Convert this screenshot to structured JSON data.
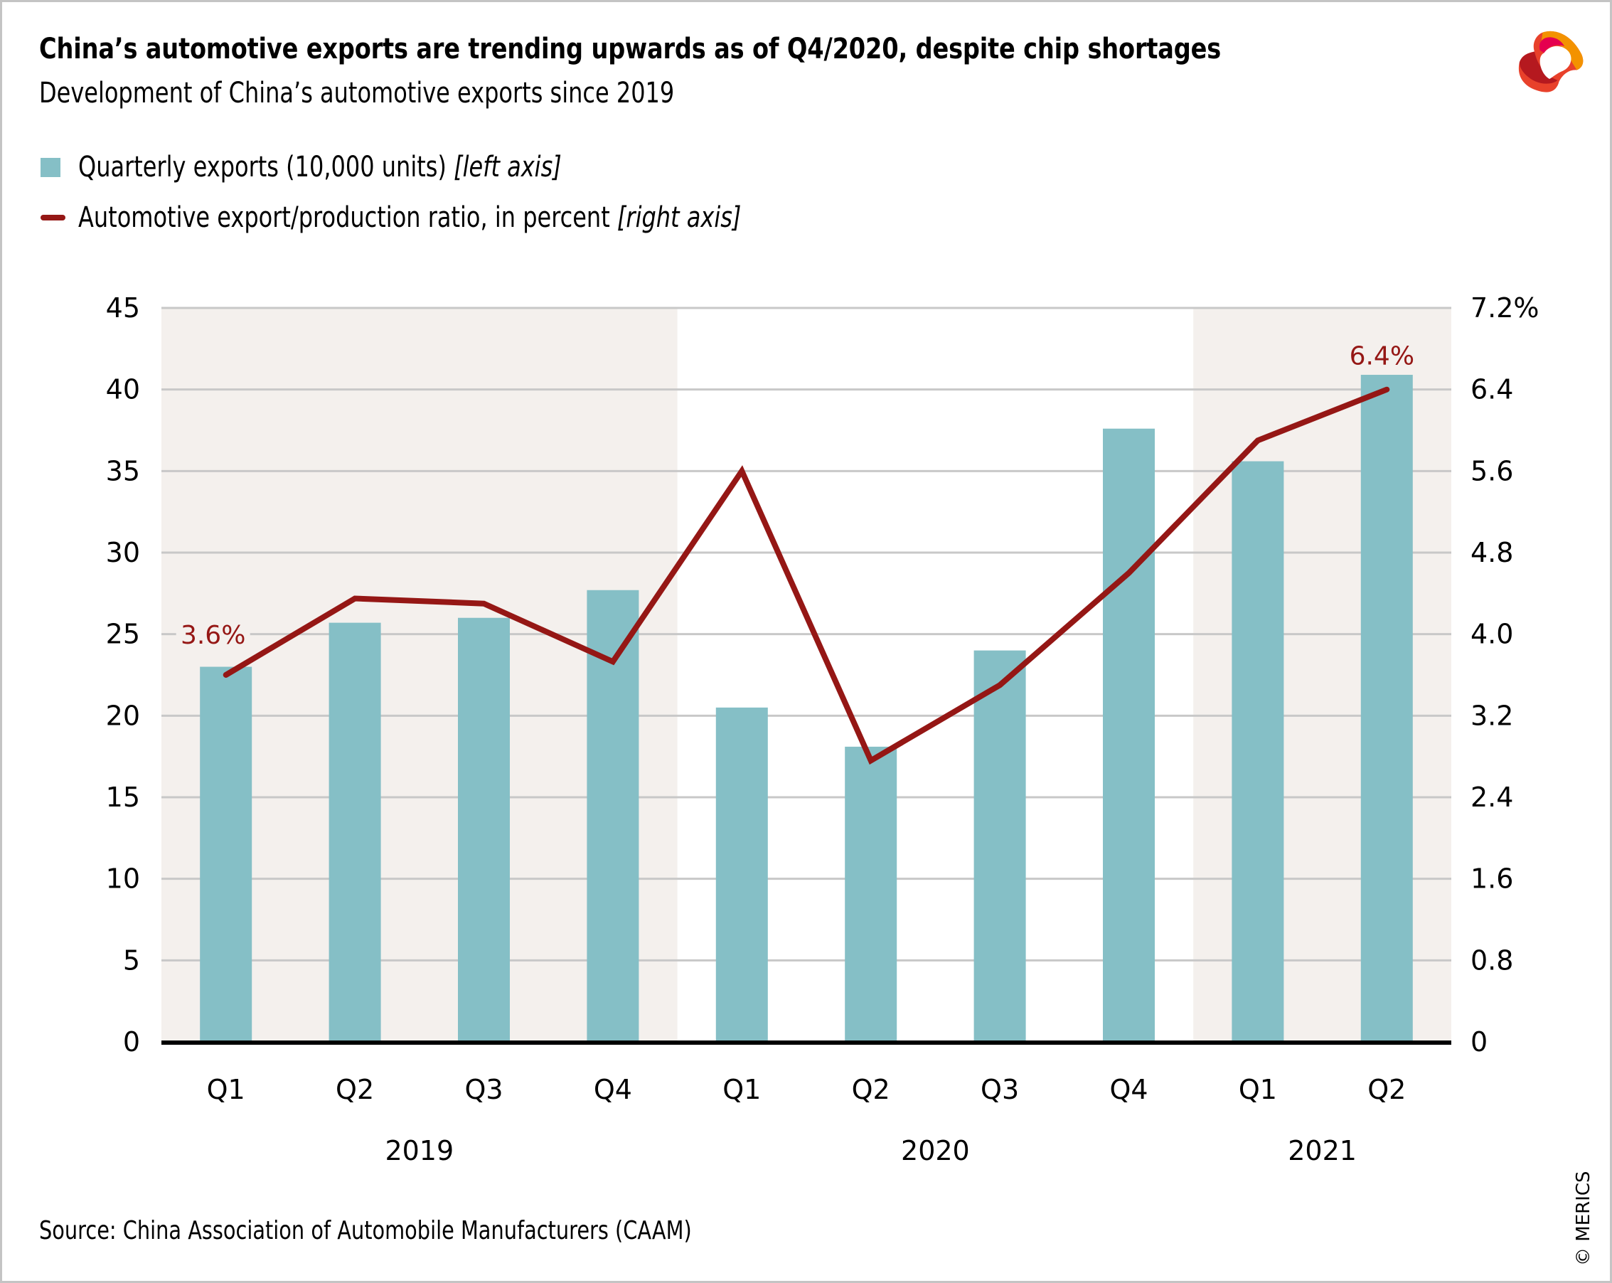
{
  "header": {
    "title": "China’s automotive exports are trending upwards as of Q4/2020, despite chip shortages",
    "subtitle": "Development of China’s automotive exports since 2019",
    "logo": "merics-logo-icon"
  },
  "legend": [
    {
      "marker": "square-swatch",
      "label": "Quarterly exports (10,000 units) ",
      "axis_note": "[left axis]",
      "color": "#85bfc6"
    },
    {
      "marker": "line-swatch",
      "label": "Automotive export/production ratio, in percent ",
      "axis_note": "[right axis]",
      "color": "#951715"
    }
  ],
  "footer": {
    "source": "Source: China Association of Automobile Manufacturers (CAAM)",
    "copyright": "© MERICS"
  },
  "chart_data": {
    "type": "bar",
    "title": "China’s automotive exports are trending upwards as of Q4/2020, despite chip shortages",
    "subtitle": "Development of China’s automotive exports since 2019",
    "categories": [
      "Q1",
      "Q2",
      "Q3",
      "Q4",
      "Q1",
      "Q2",
      "Q3",
      "Q4",
      "Q1",
      "Q2"
    ],
    "groups": [
      {
        "label": "2019",
        "start": 0,
        "end": 3,
        "shaded": true
      },
      {
        "label": "2020",
        "start": 4,
        "end": 7,
        "shaded": false
      },
      {
        "label": "2021",
        "start": 8,
        "end": 9,
        "shaded": true
      }
    ],
    "series": [
      {
        "name": "Quarterly exports (10,000 units)",
        "type": "bar",
        "axis": "left",
        "color": "#85bfc6",
        "values": [
          23.0,
          25.7,
          26.0,
          27.7,
          20.5,
          18.1,
          24.0,
          37.6,
          35.6,
          40.9
        ]
      },
      {
        "name": "Automotive export/production ratio, in percent",
        "type": "line",
        "axis": "right",
        "color": "#951715",
        "values": [
          3.6,
          4.35,
          4.3,
          3.73,
          5.6,
          2.76,
          3.5,
          4.6,
          5.9,
          6.4
        ]
      }
    ],
    "left_axis": {
      "ylim": [
        0,
        45
      ],
      "ticks": [
        "0",
        "5",
        "10",
        "15",
        "20",
        "25",
        "30",
        "35",
        "40",
        "45"
      ]
    },
    "right_axis": {
      "ylim": [
        0,
        7.2
      ],
      "ticks": [
        "0",
        "0.8",
        "1.6",
        "2.4",
        "3.2",
        "4.0",
        "4.8",
        "5.6",
        "6.4",
        "7.2%"
      ]
    },
    "annotations": [
      {
        "series": 1,
        "index": 0,
        "text": "3.6%"
      },
      {
        "series": 1,
        "index": 9,
        "text": "6.4%"
      }
    ],
    "grid": true,
    "shade_color": "#f4f0ed",
    "legend_position": "top-left",
    "xlabel": "",
    "ylabel": ""
  }
}
